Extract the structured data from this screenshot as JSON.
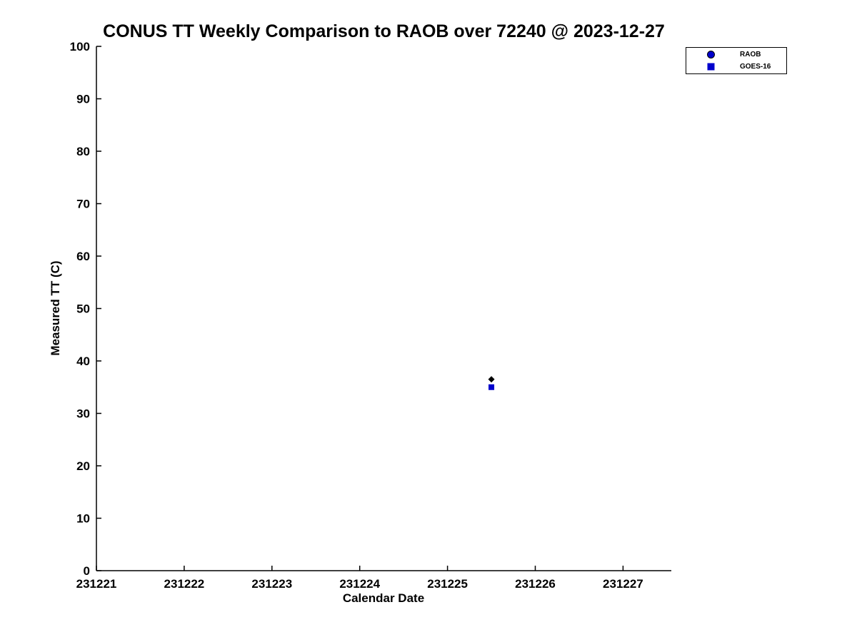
{
  "chart_data": {
    "type": "scatter",
    "title": "CONUS TT Weekly Comparison to RAOB over 72240 @ 2023-12-27",
    "xlabel": "Calendar Date",
    "ylabel": "Measured TT (C)",
    "xlim": [
      231221,
      231227.55
    ],
    "ylim": [
      0,
      100
    ],
    "xticks": [
      231221,
      231222,
      231223,
      231224,
      231225,
      231226,
      231227
    ],
    "yticks": [
      0,
      10,
      20,
      30,
      40,
      50,
      60,
      70,
      80,
      90,
      100
    ],
    "grid": false,
    "axis_color": "#000000",
    "legend": {
      "position": "top-right",
      "entries": [
        "RAOB",
        "GOES-16"
      ]
    },
    "series": [
      {
        "name": "RAOB",
        "plot_marker": "diamond",
        "plot_color": "#000000",
        "legend_marker": "circle",
        "legend_color": "#0000cc",
        "legend_edge": "#000000",
        "points": [
          {
            "x": 231225.5,
            "y": 36.5
          }
        ]
      },
      {
        "name": "GOES-16",
        "plot_marker": "square",
        "plot_color": "#0000cc",
        "legend_marker": "square",
        "legend_color": "#0000cc",
        "legend_edge": "#0000cc",
        "points": [
          {
            "x": 231225.5,
            "y": 35.0
          }
        ]
      }
    ]
  }
}
